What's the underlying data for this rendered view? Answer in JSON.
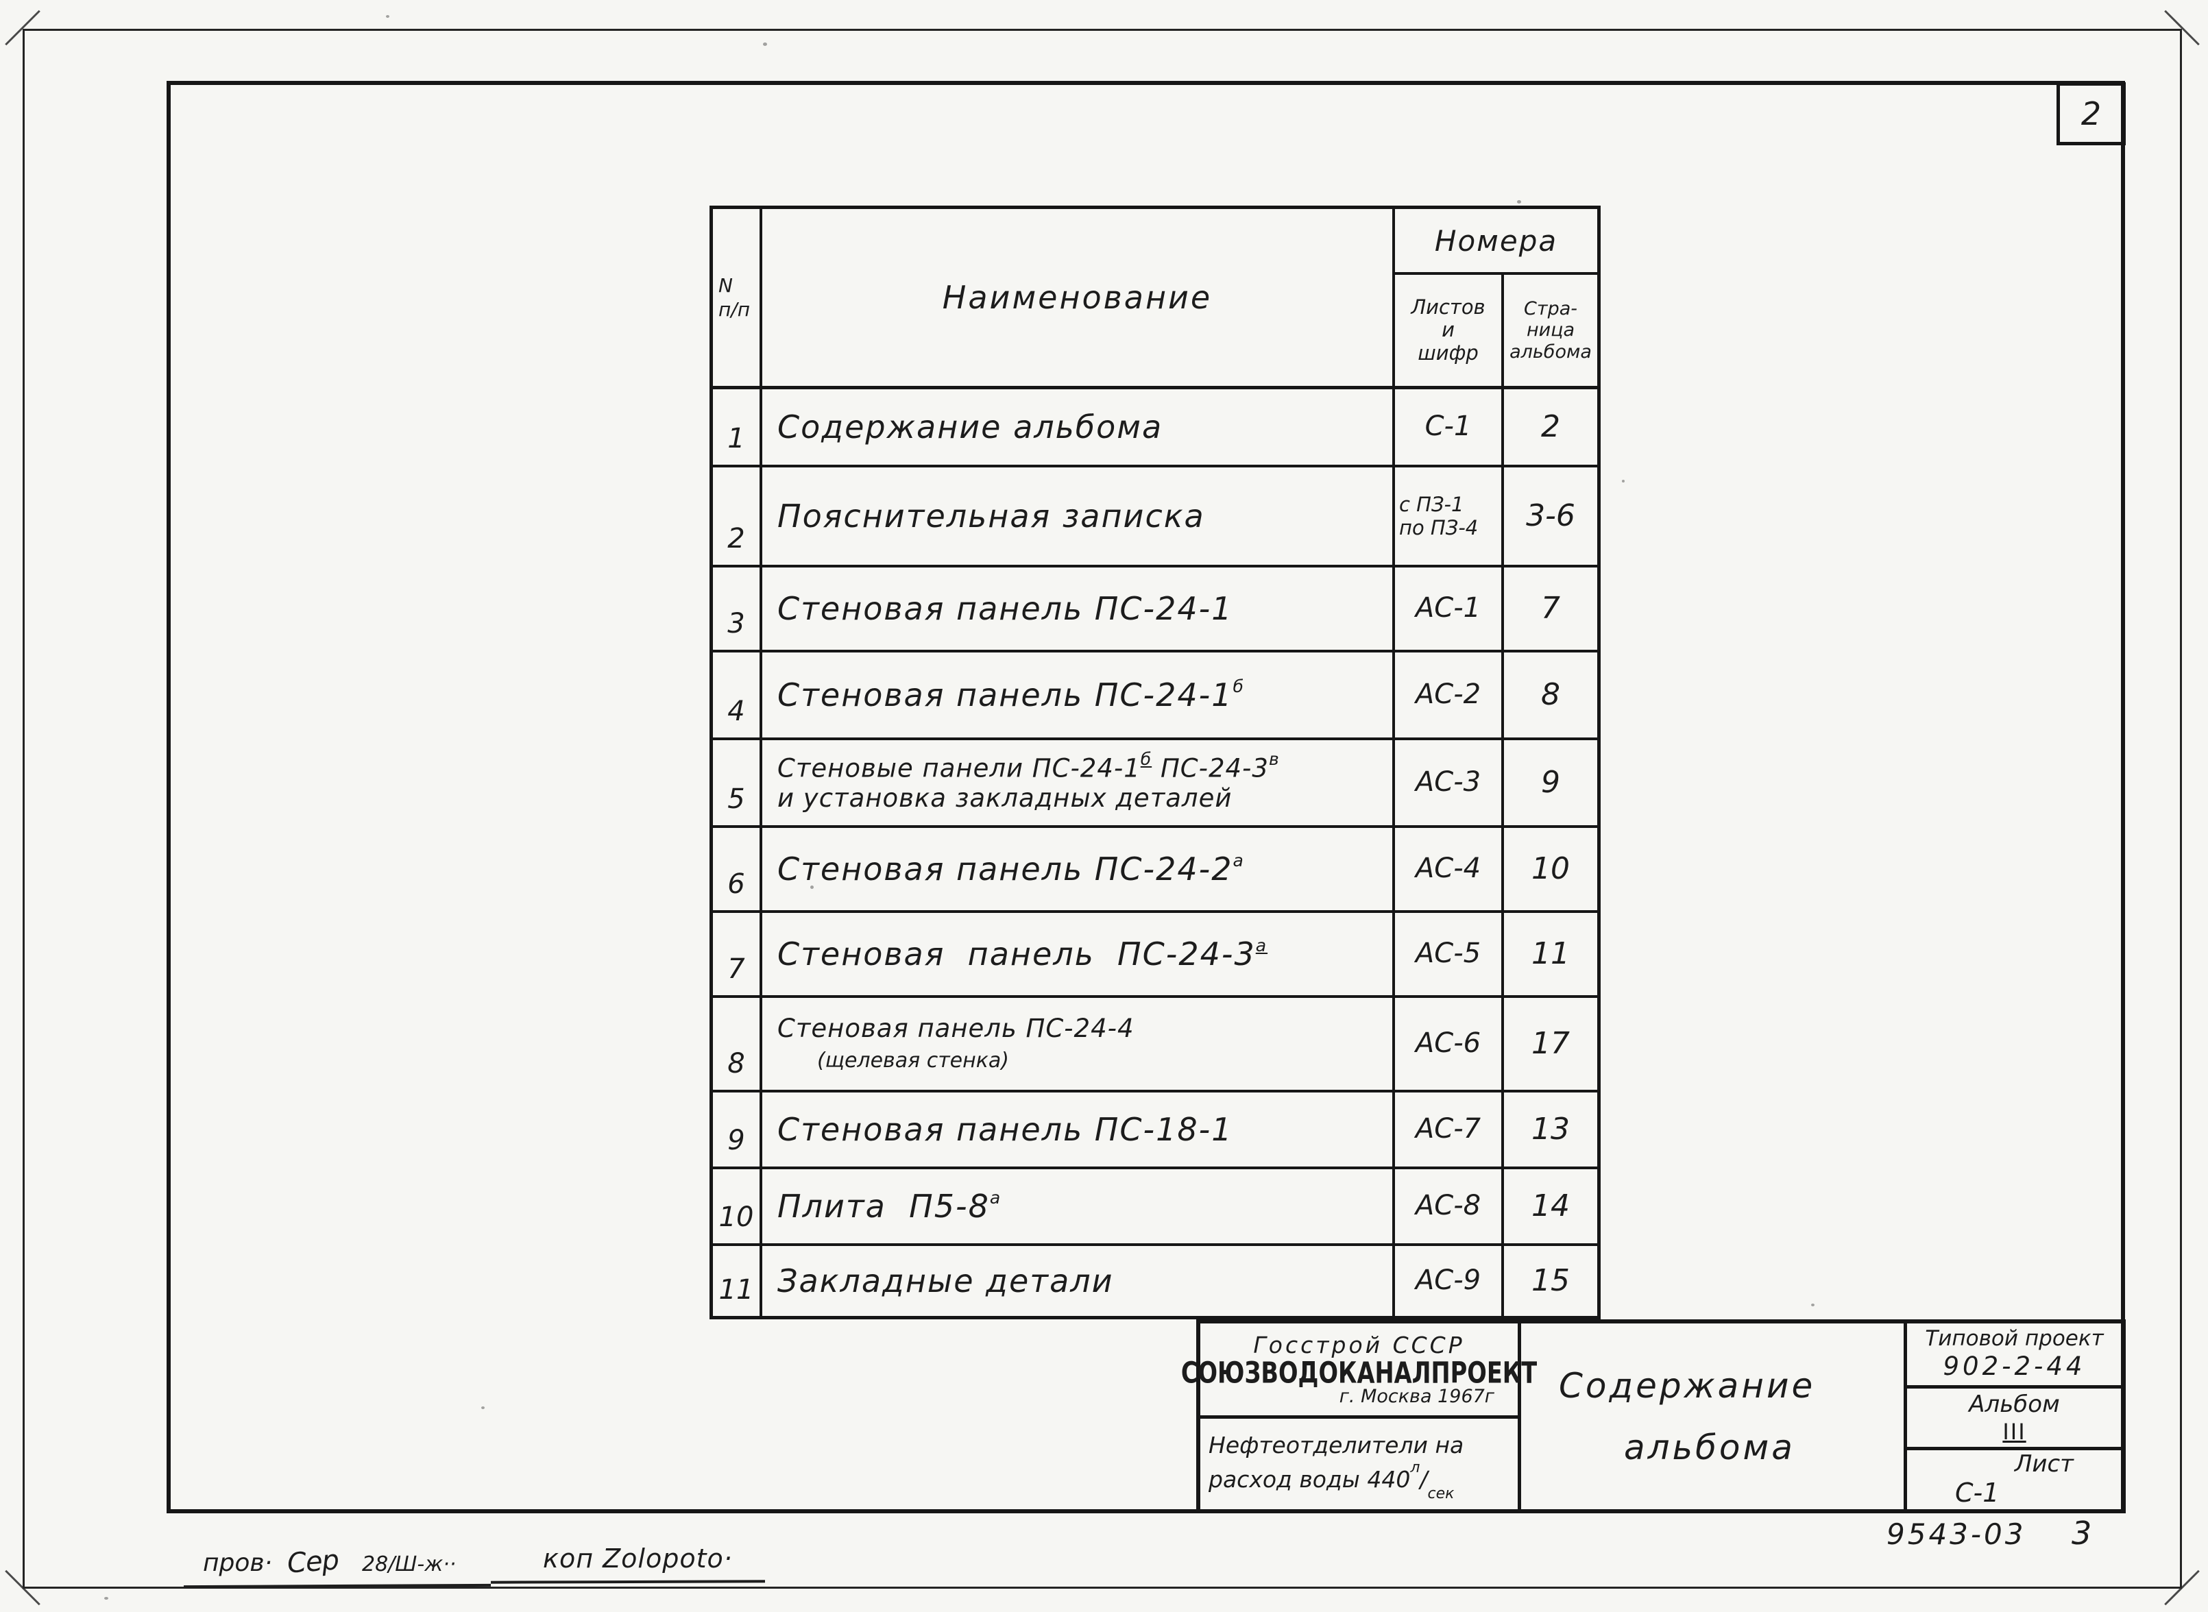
{
  "page": {
    "sheet_number": "2",
    "drawing_number": "9543-03",
    "sheet_index": "3",
    "handwriting": {
      "checked_label": "пров·",
      "checked_signature": "Сер",
      "checked_date": "28/Ш-ж··",
      "copy_note": "коп Zolopoto·"
    }
  },
  "table": {
    "header": {
      "num_line1": "N",
      "num_line2": "п/п",
      "name": "Наименование",
      "numbers_group": "Номера",
      "col_sheets": [
        "Листов",
        "и",
        "шифр"
      ],
      "col_pages": [
        "Стра-",
        "ница",
        "альбома"
      ]
    },
    "rows": [
      {
        "num": "1",
        "name": [
          [
            {
              "t": "Содержание альбома"
            }
          ]
        ],
        "code": [
          "С-1"
        ],
        "page": "2"
      },
      {
        "num": "2",
        "name": [
          [
            {
              "t": "Пояснительная записка"
            }
          ]
        ],
        "code": [
          "с ПЗ-1",
          "по ПЗ-4"
        ],
        "page": "3-6"
      },
      {
        "num": "3",
        "name": [
          [
            {
              "t": "Стеновая панель ПС-24-1"
            }
          ]
        ],
        "code": [
          "АС-1"
        ],
        "page": "7"
      },
      {
        "num": "4",
        "name": [
          [
            {
              "t": "Стеновая панель ПС-24-1"
            },
            {
              "t": "б",
              "sup": true
            }
          ]
        ],
        "code": [
          "АС-2"
        ],
        "page": "8"
      },
      {
        "num": "5",
        "name": [
          [
            {
              "t": "Стеновые панели ПС-24-1"
            },
            {
              "t": "б",
              "sup": true,
              "u": true
            },
            {
              "t": " ПС-24-3"
            },
            {
              "t": "в",
              "sup": true
            }
          ],
          [
            {
              "t": "и установка закладных деталей"
            }
          ]
        ],
        "code": [
          "АС-3"
        ],
        "page": "9"
      },
      {
        "num": "6",
        "name": [
          [
            {
              "t": "Стеновая панель ПС-24-2"
            },
            {
              "t": "а",
              "sup": true
            }
          ]
        ],
        "code": [
          "АС-4"
        ],
        "page": "10"
      },
      {
        "num": "7",
        "name": [
          [
            {
              "t": "Стеновая  панель  ПС-24-3"
            },
            {
              "t": "а",
              "sup": true,
              "u": true
            }
          ]
        ],
        "code": [
          "АС-5"
        ],
        "page": "11"
      },
      {
        "num": "8",
        "name": [
          [
            {
              "t": "Стеновая панель ПС-24-4"
            }
          ],
          [
            {
              "t": "(щелевая стенка)",
              "small": true
            }
          ]
        ],
        "code": [
          "АС-6"
        ],
        "page": "17"
      },
      {
        "num": "9",
        "name": [
          [
            {
              "t": "Стеновая панель ПС-18-1"
            }
          ]
        ],
        "code": [
          "АС-7"
        ],
        "page": "13"
      },
      {
        "num": "10",
        "name": [
          [
            {
              "t": "Плита  П5-8"
            },
            {
              "t": "а",
              "sup": true
            }
          ]
        ],
        "code": [
          "АС-8"
        ],
        "page": "14"
      },
      {
        "num": "11",
        "name": [
          [
            {
              "t": "Закладные детали"
            }
          ]
        ],
        "code": [
          "АС-9"
        ],
        "page": "15"
      }
    ]
  },
  "title_block": {
    "org_line1": "Госстрой СССР",
    "org_logo": "СОЮЗВОДОКАНАЛПРОЕКТ",
    "org_line3": "г. Москва 1967г",
    "project_line1": "Нефтеотделители на",
    "project_line2_pre": "расход воды 440",
    "flow_sup": "л",
    "flow_sub": "сек",
    "sheet_title_line1": "Содержание",
    "sheet_title_line2": "альбома",
    "type_project_label": "Типовой проект",
    "type_project_num": "902-2-44",
    "album_label": "Альбом",
    "album_num": "III",
    "list_label": "Лист",
    "list_num": "С-1"
  },
  "colors": {
    "paper": "#f6f6f3",
    "ink": "#1c1c1c"
  }
}
